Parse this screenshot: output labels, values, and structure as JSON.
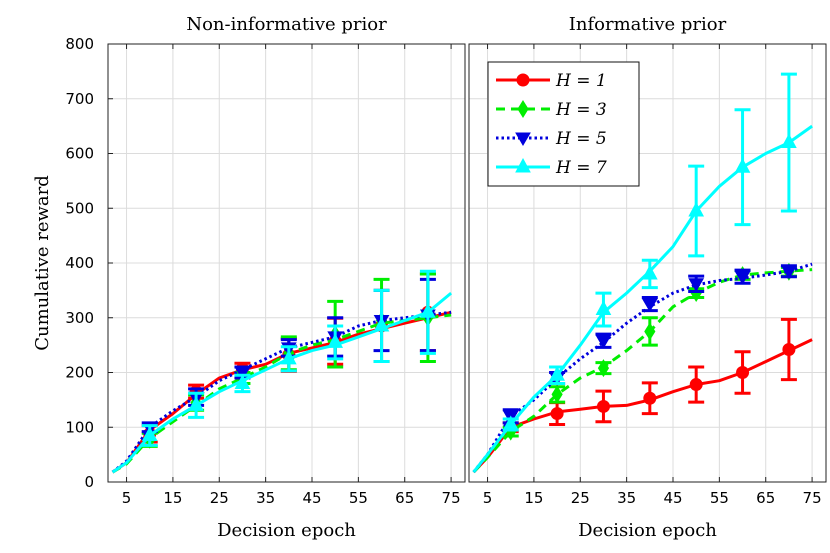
{
  "chart_data": [
    {
      "type": "line",
      "title": "Non-informative prior",
      "xlabel": "Decision epoch",
      "ylabel": "Cumulative reward",
      "xlim": [
        1,
        78
      ],
      "ylim": [
        0,
        800
      ],
      "xticks": [
        "5",
        "15",
        "25",
        "35",
        "45",
        "55",
        "65",
        "75"
      ],
      "yticks": [
        "0",
        "100",
        "200",
        "300",
        "400",
        "500",
        "600",
        "700",
        "800"
      ],
      "grid": true,
      "series": [
        {
          "name": "H = 1",
          "color": "#ff0000",
          "dash": "solid",
          "marker": "circle",
          "line": [
            [
              2,
              18
            ],
            [
              5,
              35
            ],
            [
              10,
              95
            ],
            [
              15,
              125
            ],
            [
              20,
              160
            ],
            [
              25,
              190
            ],
            [
              30,
              205
            ],
            [
              35,
              215
            ],
            [
              40,
              235
            ],
            [
              45,
              245
            ],
            [
              50,
              255
            ],
            [
              55,
              270
            ],
            [
              60,
              280
            ],
            [
              65,
              290
            ],
            [
              70,
              300
            ],
            [
              75,
              310
            ]
          ],
          "errorbars": [
            [
              10,
              88,
              15
            ],
            [
              20,
              165,
              12
            ],
            [
              30,
              207,
              10
            ],
            [
              40,
              232,
              30
            ],
            [
              50,
              257,
              42
            ],
            [
              60,
              285,
              65
            ],
            [
              70,
              310,
              70
            ]
          ]
        },
        {
          "name": "H = 3",
          "color": "#00ee00",
          "dash": "dashed",
          "marker": "diamond",
          "line": [
            [
              2,
              18
            ],
            [
              5,
              33
            ],
            [
              10,
              80
            ],
            [
              15,
              110
            ],
            [
              20,
              140
            ],
            [
              25,
              170
            ],
            [
              30,
              190
            ],
            [
              35,
              210
            ],
            [
              40,
              235
            ],
            [
              45,
              250
            ],
            [
              50,
              260
            ],
            [
              55,
              275
            ],
            [
              60,
              290
            ],
            [
              65,
              295
            ],
            [
              70,
              300
            ],
            [
              75,
              305
            ]
          ],
          "errorbars": [
            [
              10,
              77,
              12
            ],
            [
              20,
              145,
              14
            ],
            [
              30,
              190,
              10
            ],
            [
              40,
              235,
              30
            ],
            [
              50,
              270,
              60
            ],
            [
              60,
              295,
              75
            ],
            [
              70,
              300,
              80
            ]
          ]
        },
        {
          "name": "H = 5",
          "color": "#0000dd",
          "dash": "dotted",
          "marker": "triangle-down",
          "line": [
            [
              2,
              18
            ],
            [
              5,
              38
            ],
            [
              10,
              100
            ],
            [
              15,
              130
            ],
            [
              20,
              155
            ],
            [
              25,
              185
            ],
            [
              30,
              205
            ],
            [
              35,
              225
            ],
            [
              40,
              245
            ],
            [
              45,
              255
            ],
            [
              50,
              265
            ],
            [
              55,
              285
            ],
            [
              60,
              295
            ],
            [
              65,
              300
            ],
            [
              70,
              305
            ],
            [
              75,
              310
            ]
          ],
          "errorbars": [
            [
              10,
              100,
              8
            ],
            [
              20,
              155,
              15
            ],
            [
              30,
              200,
              10
            ],
            [
              40,
              245,
              15
            ],
            [
              50,
              265,
              35
            ],
            [
              60,
              295,
              55
            ],
            [
              70,
              305,
              65
            ]
          ]
        },
        {
          "name": "H = 7",
          "color": "#00ffff",
          "dash": "solid",
          "marker": "triangle-up",
          "line": [
            [
              2,
              18
            ],
            [
              5,
              35
            ],
            [
              10,
              85
            ],
            [
              15,
              115
            ],
            [
              20,
              140
            ],
            [
              25,
              165
            ],
            [
              30,
              185
            ],
            [
              35,
              205
            ],
            [
              40,
              225
            ],
            [
              45,
              240
            ],
            [
              50,
              250
            ],
            [
              55,
              265
            ],
            [
              60,
              280
            ],
            [
              65,
              295
            ],
            [
              70,
              310
            ],
            [
              75,
              345
            ]
          ],
          "errorbars": [
            [
              10,
              85,
              18
            ],
            [
              20,
              140,
              22
            ],
            [
              30,
              180,
              15
            ],
            [
              40,
              225,
              22
            ],
            [
              50,
              255,
              30
            ],
            [
              60,
              285,
              65
            ],
            [
              70,
              310,
              75
            ]
          ]
        }
      ]
    },
    {
      "type": "line",
      "title": "Informative prior",
      "xlabel": "Decision epoch",
      "ylabel": "",
      "xlim": [
        1,
        78
      ],
      "ylim": [
        0,
        800
      ],
      "xticks": [
        "5",
        "15",
        "25",
        "35",
        "45",
        "55",
        "65",
        "75"
      ],
      "yticks": [],
      "grid": true,
      "legend": {
        "placement": "top-left",
        "entries": [
          "H = 1",
          "H = 3",
          "H = 5",
          "H = 7"
        ]
      },
      "series": [
        {
          "name": "H = 1",
          "color": "#ff0000",
          "dash": "solid",
          "marker": "circle",
          "line": [
            [
              2,
              18
            ],
            [
              5,
              45
            ],
            [
              10,
              100
            ],
            [
              15,
              115
            ],
            [
              20,
              128
            ],
            [
              25,
              133
            ],
            [
              30,
              138
            ],
            [
              35,
              140
            ],
            [
              40,
              150
            ],
            [
              45,
              165
            ],
            [
              50,
              178
            ],
            [
              55,
              185
            ],
            [
              60,
              200
            ],
            [
              65,
              220
            ],
            [
              70,
              240
            ],
            [
              75,
              260
            ]
          ],
          "errorbars": [
            [
              10,
              100,
              8
            ],
            [
              20,
              125,
              20
            ],
            [
              30,
              138,
              28
            ],
            [
              40,
              153,
              28
            ],
            [
              50,
              178,
              32
            ],
            [
              60,
              200,
              38
            ],
            [
              70,
              242,
              55
            ]
          ]
        },
        {
          "name": "H = 3",
          "color": "#00ee00",
          "dash": "dashed",
          "marker": "diamond",
          "line": [
            [
              2,
              18
            ],
            [
              5,
              45
            ],
            [
              10,
              92
            ],
            [
              15,
              120
            ],
            [
              20,
              160
            ],
            [
              25,
              190
            ],
            [
              30,
              210
            ],
            [
              35,
              240
            ],
            [
              40,
              275
            ],
            [
              45,
              320
            ],
            [
              50,
              345
            ],
            [
              55,
              365
            ],
            [
              60,
              378
            ],
            [
              65,
              382
            ],
            [
              70,
              385
            ],
            [
              75,
              388
            ]
          ],
          "errorbars": [
            [
              10,
              92,
              8
            ],
            [
              20,
              160,
              14
            ],
            [
              30,
              208,
              10
            ],
            [
              40,
              275,
              25
            ],
            [
              50,
              345,
              8
            ],
            [
              60,
              378,
              8
            ],
            [
              70,
              384,
              8
            ]
          ]
        },
        {
          "name": "H = 5",
          "color": "#0000dd",
          "dash": "dotted",
          "marker": "triangle-down",
          "line": [
            [
              2,
              18
            ],
            [
              5,
              50
            ],
            [
              10,
              120
            ],
            [
              15,
              150
            ],
            [
              20,
              190
            ],
            [
              25,
              225
            ],
            [
              30,
              255
            ],
            [
              35,
              290
            ],
            [
              40,
              320
            ],
            [
              45,
              345
            ],
            [
              50,
              360
            ],
            [
              55,
              368
            ],
            [
              60,
              372
            ],
            [
              65,
              378
            ],
            [
              70,
              385
            ],
            [
              75,
              398
            ]
          ],
          "errorbars": [
            [
              10,
              120,
              12
            ],
            [
              20,
              190,
              10
            ],
            [
              30,
              258,
              12
            ],
            [
              40,
              325,
              12
            ],
            [
              50,
              362,
              14
            ],
            [
              60,
              375,
              12
            ],
            [
              70,
              385,
              10
            ]
          ]
        },
        {
          "name": "H = 7",
          "color": "#00ffff",
          "dash": "solid",
          "marker": "triangle-up",
          "line": [
            [
              2,
              18
            ],
            [
              5,
              50
            ],
            [
              10,
              105
            ],
            [
              15,
              155
            ],
            [
              20,
              195
            ],
            [
              25,
              250
            ],
            [
              30,
              310
            ],
            [
              35,
              345
            ],
            [
              40,
              385
            ],
            [
              45,
              430
            ],
            [
              50,
              495
            ],
            [
              55,
              540
            ],
            [
              60,
              575
            ],
            [
              65,
              600
            ],
            [
              70,
              620
            ],
            [
              75,
              650
            ]
          ],
          "errorbars": [
            [
              10,
              105,
              10
            ],
            [
              20,
              195,
              15
            ],
            [
              30,
              315,
              30
            ],
            [
              40,
              380,
              25
            ],
            [
              50,
              495,
              82
            ],
            [
              60,
              575,
              105
            ],
            [
              70,
              620,
              125
            ]
          ]
        }
      ]
    }
  ]
}
